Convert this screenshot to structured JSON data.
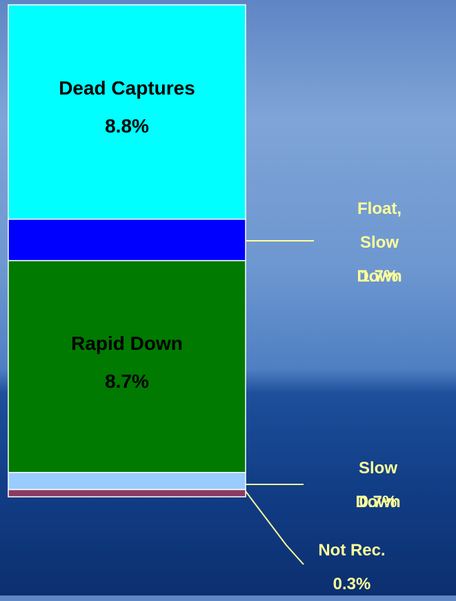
{
  "chart_data": {
    "type": "stacked-bar",
    "categories": [
      "Not Rec.",
      "Slow Down",
      "Rapid Down",
      "Float,\nSlow Down",
      "Dead Captures"
    ],
    "values": [
      0.3,
      0.7,
      8.7,
      1.7,
      8.8
    ],
    "value_labels": [
      "0.3%",
      "0.7%",
      "8.7%",
      "1.7%",
      "8.8%"
    ],
    "colors": [
      "#8b3a62",
      "#99ccff",
      "#007a00",
      "#0000ff",
      "#00ffff"
    ]
  }
}
